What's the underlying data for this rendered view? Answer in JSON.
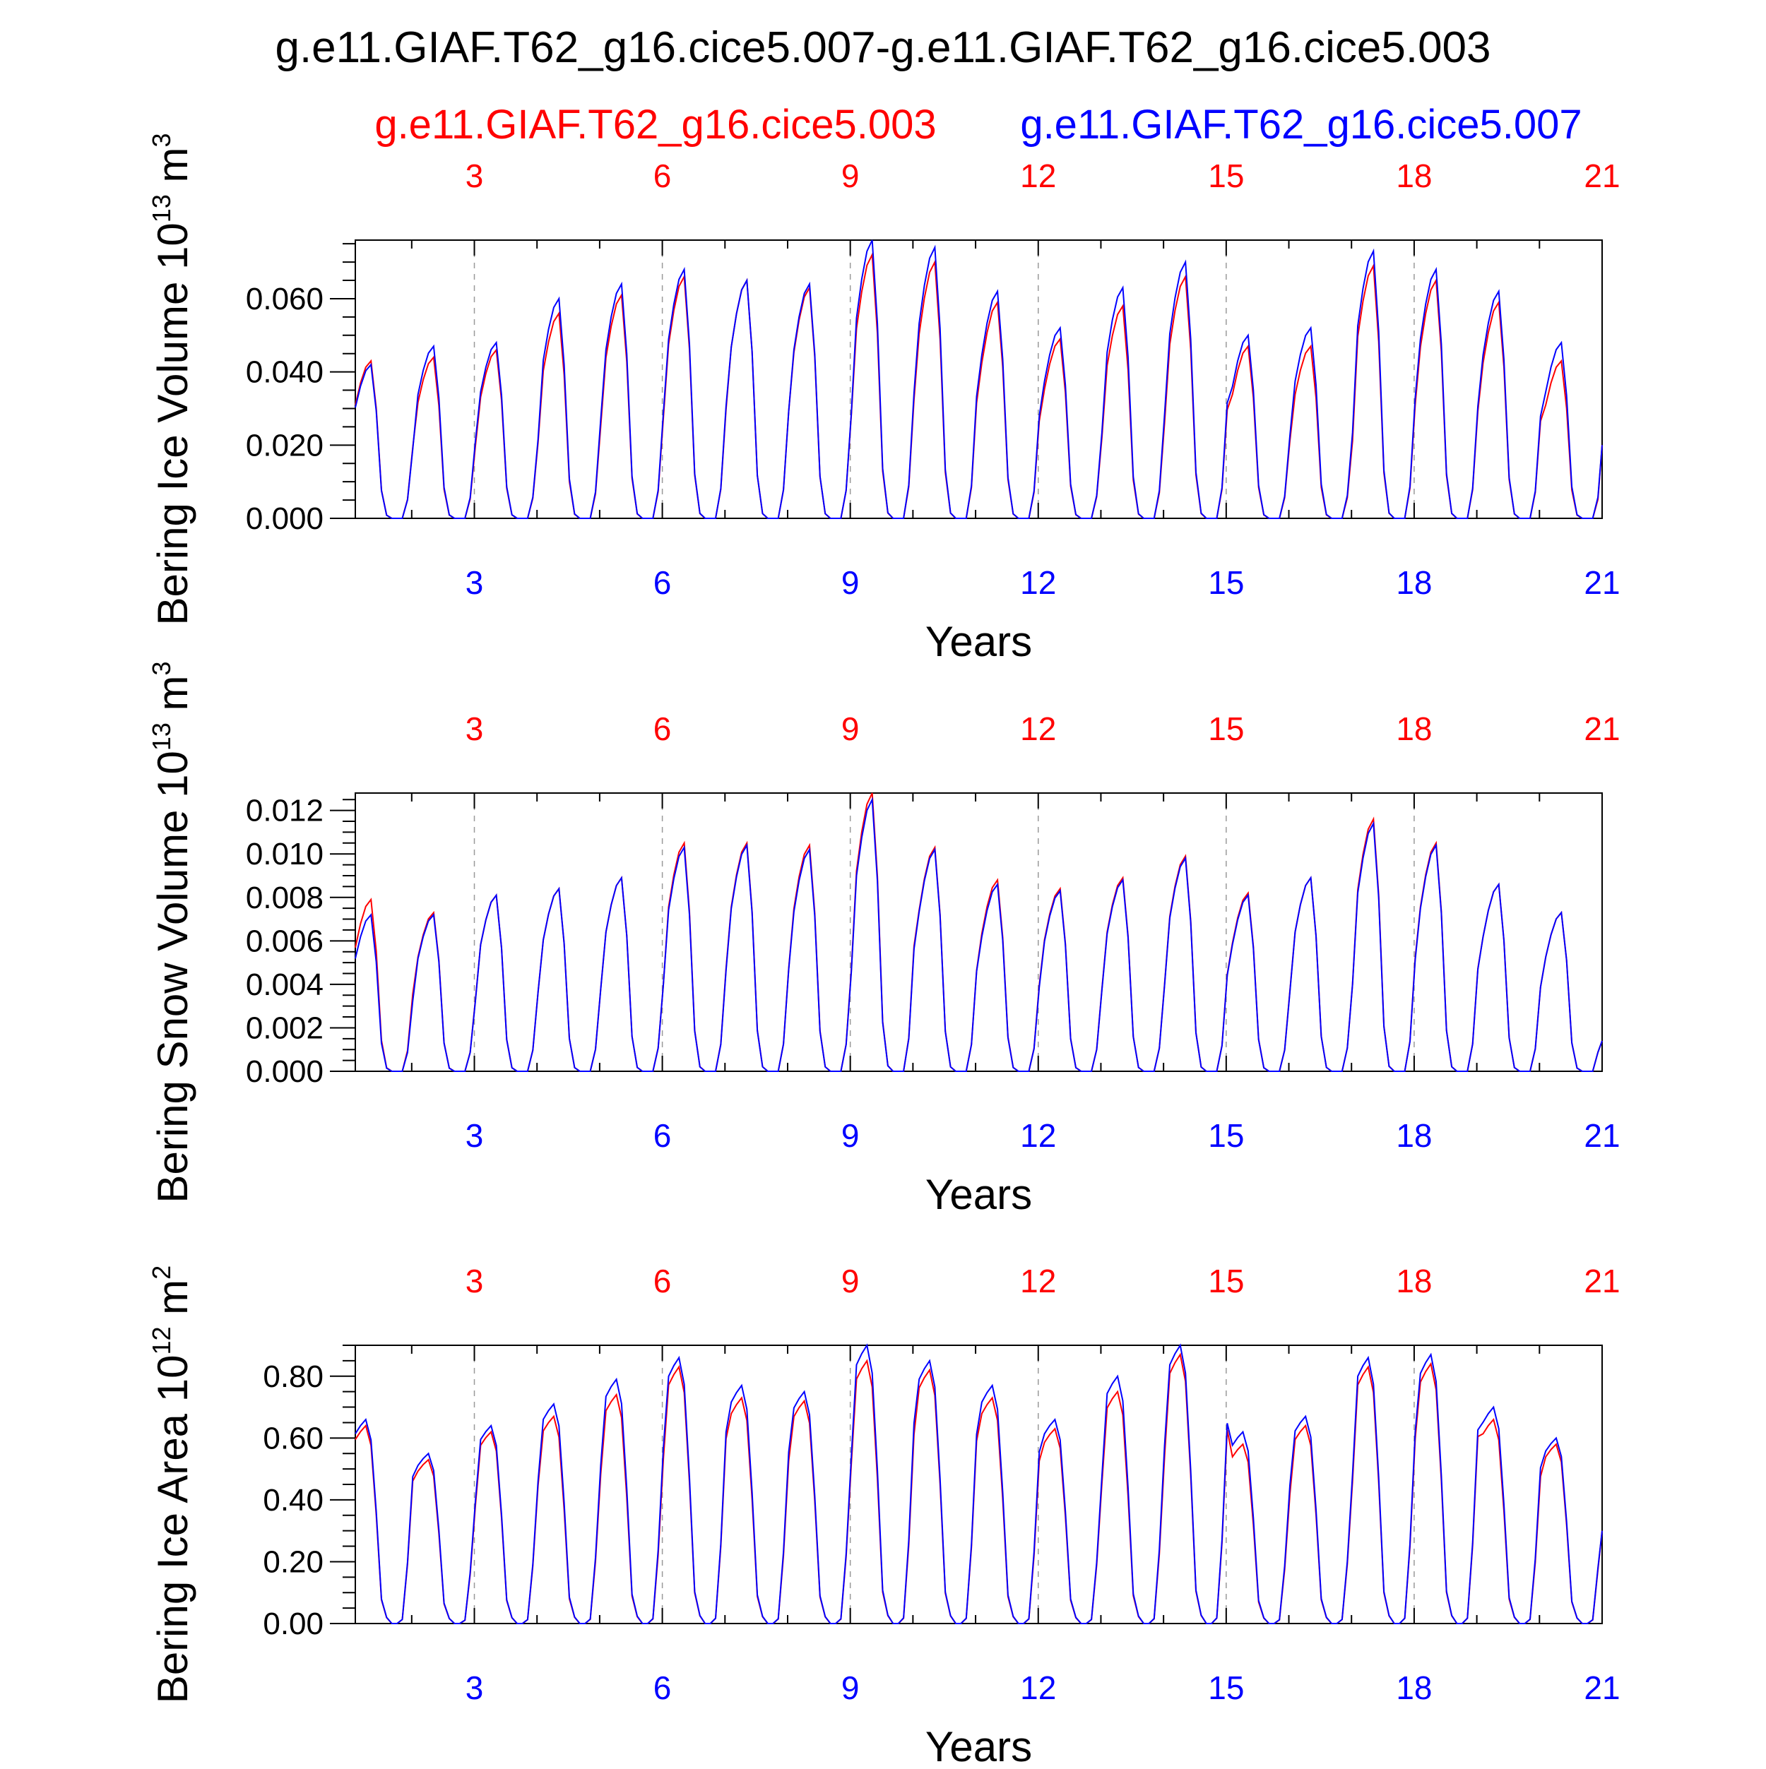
{
  "title": "g.e11.GIAF.T62_g16.cice5.007-g.e11.GIAF.T62_g16.cice5.003",
  "legend": {
    "red": "g.e11.GIAF.T62_g16.cice5.003",
    "blue": "g.e11.GIAF.T62_g16.cice5.007"
  },
  "colors": {
    "red": "#ff0000",
    "blue": "#0000ff",
    "axis": "#000000",
    "grid": "#999999"
  },
  "x_axis": {
    "label": "Years",
    "ticks": [
      "3",
      "6",
      "9",
      "12",
      "15",
      "18",
      "21"
    ],
    "tick_values": [
      3,
      6,
      9,
      12,
      15,
      18,
      21
    ],
    "range": [
      1.1,
      21
    ]
  },
  "chart_data": [
    {
      "type": "line",
      "ylabel": "Bering Ice Volume",
      "yunit_base": "10",
      "yunit_exp": "13",
      "yunit_sym": "m",
      "yunit_pow": "3",
      "ylim": [
        0,
        0.076
      ],
      "yticks": [
        "0.000",
        "0.020",
        "0.040",
        "0.060"
      ],
      "ytick_values": [
        0,
        0.02,
        0.04,
        0.06
      ],
      "peaks": {
        "red": [
          0.043,
          0.044,
          0.046,
          0.056,
          0.061,
          0.066,
          0.065,
          0.063,
          0.072,
          0.07,
          0.059,
          0.049,
          0.058,
          0.066,
          0.047,
          0.047,
          0.069,
          0.065,
          0.059,
          0.043
        ],
        "blue": [
          0.042,
          0.047,
          0.048,
          0.06,
          0.064,
          0.068,
          0.065,
          0.064,
          0.076,
          0.074,
          0.062,
          0.052,
          0.063,
          0.07,
          0.05,
          0.052,
          0.073,
          0.068,
          0.062,
          0.048
        ]
      },
      "end_value": 0.02
    },
    {
      "type": "line",
      "ylabel": "Bering Snow Volume",
      "yunit_base": "10",
      "yunit_exp": "13",
      "yunit_sym": "m",
      "yunit_pow": "3",
      "ylim": [
        0,
        0.0128
      ],
      "yticks": [
        "0.000",
        "0.002",
        "0.004",
        "0.006",
        "0.008",
        "0.010",
        "0.012"
      ],
      "ytick_values": [
        0,
        0.002,
        0.004,
        0.006,
        0.008,
        0.01,
        0.012
      ],
      "peaks": {
        "red": [
          0.0079,
          0.0073,
          0.0081,
          0.0084,
          0.0089,
          0.0105,
          0.0105,
          0.0104,
          0.0128,
          0.0103,
          0.0088,
          0.0084,
          0.0089,
          0.0099,
          0.0082,
          0.0089,
          0.0116,
          0.0105,
          0.0086,
          0.0073
        ],
        "blue": [
          0.0072,
          0.0072,
          0.0081,
          0.0084,
          0.0089,
          0.0103,
          0.0104,
          0.0102,
          0.0125,
          0.0102,
          0.0086,
          0.0083,
          0.0088,
          0.0098,
          0.0081,
          0.0089,
          0.0114,
          0.0104,
          0.0086,
          0.0073
        ]
      },
      "end_value": 0.0014
    },
    {
      "type": "line",
      "ylabel": "Bering Ice Area",
      "yunit_base": "10",
      "yunit_exp": "12",
      "yunit_sym": "m",
      "yunit_pow": "2",
      "ylim": [
        0,
        0.9
      ],
      "yticks": [
        "0.00",
        "0.20",
        "0.40",
        "0.60",
        "0.80"
      ],
      "ytick_values": [
        0,
        0.2,
        0.4,
        0.6,
        0.8
      ],
      "peaks": {
        "red": [
          0.64,
          0.53,
          0.62,
          0.67,
          0.74,
          0.83,
          0.73,
          0.72,
          0.85,
          0.82,
          0.73,
          0.63,
          0.75,
          0.87,
          0.58,
          0.64,
          0.83,
          0.84,
          0.66,
          0.58
        ],
        "blue": [
          0.66,
          0.55,
          0.64,
          0.71,
          0.79,
          0.86,
          0.77,
          0.75,
          0.9,
          0.85,
          0.77,
          0.66,
          0.8,
          0.9,
          0.62,
          0.67,
          0.86,
          0.87,
          0.7,
          0.6
        ]
      },
      "end_value": 0.3
    }
  ]
}
